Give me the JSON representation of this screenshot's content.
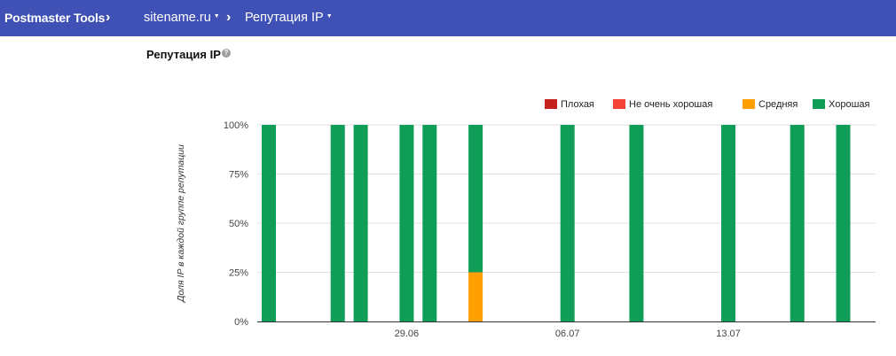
{
  "header": {
    "brand": "Postmaster Tools",
    "domain_selector": "sitename.ru",
    "section_selector": "Репутация IP",
    "separator": "›",
    "caret": "▼",
    "bar_color": "#3f51b5"
  },
  "page": {
    "title": "Репутация IP",
    "help_icon": "help-icon"
  },
  "chart_data": {
    "type": "bar",
    "stacked": true,
    "ylabel": "Доля IP в каждой группе репутации",
    "ylim": [
      0,
      100
    ],
    "y_ticks": [
      "0%",
      "25%",
      "50%",
      "75%",
      "100%"
    ],
    "x_date_ticks": [
      "29.06",
      "06.07",
      "13.07"
    ],
    "legend": [
      {
        "name": "Плохая",
        "color": "#c5221f"
      },
      {
        "name": "Не очень хорошая",
        "color": "#f44336"
      },
      {
        "name": "Средняя",
        "color": "#ffa000"
      },
      {
        "name": "Хорошая",
        "color": "#0f9d58"
      }
    ],
    "legend_position": "top-right",
    "grid": true,
    "x": [
      "23.06",
      "26.06",
      "27.06",
      "29.06",
      "30.06",
      "02.07",
      "06.07",
      "09.07",
      "13.07",
      "16.07",
      "18.07"
    ],
    "series": [
      {
        "name": "Плохая",
        "values": [
          0,
          0,
          0,
          0,
          0,
          0,
          0,
          0,
          0,
          0,
          0
        ]
      },
      {
        "name": "Не очень хорошая",
        "values": [
          0,
          0,
          0,
          0,
          0,
          0,
          0,
          0,
          0,
          0,
          0
        ]
      },
      {
        "name": "Средняя",
        "values": [
          0,
          0,
          0,
          0,
          0,
          25,
          0,
          0,
          0,
          0,
          0
        ]
      },
      {
        "name": "Хорошая",
        "values": [
          100,
          100,
          100,
          100,
          100,
          75,
          100,
          100,
          100,
          100,
          100
        ]
      }
    ]
  }
}
